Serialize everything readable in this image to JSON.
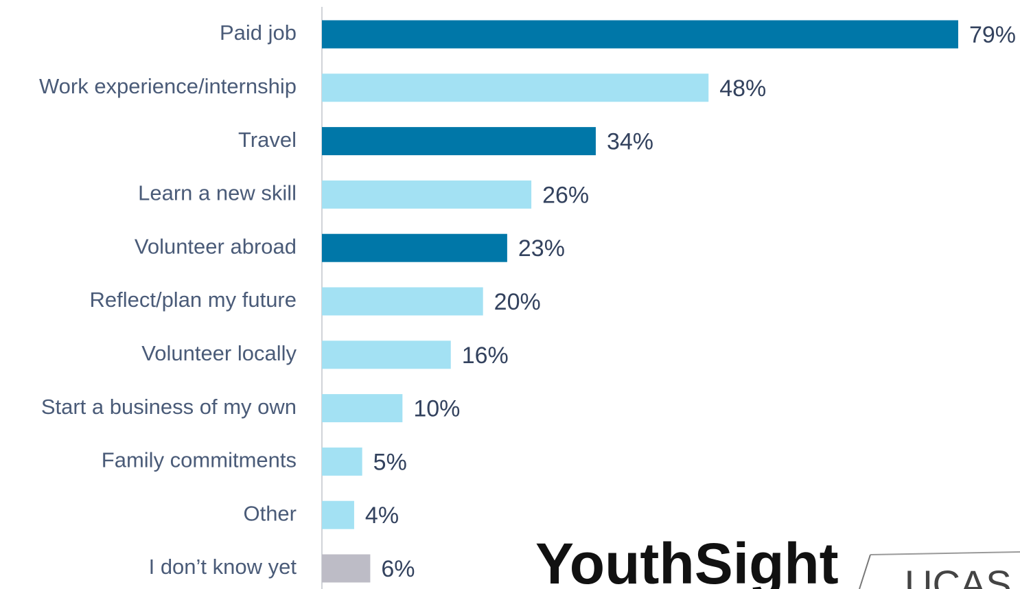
{
  "chart_data": {
    "type": "bar",
    "orientation": "horizontal",
    "categories": [
      "Paid job",
      "Work experience/internship",
      "Travel",
      "Learn a new skill",
      "Volunteer abroad",
      "Reflect/plan my future",
      "Volunteer locally",
      "Start a business of my own",
      "Family commitments",
      "Other",
      "I don’t know yet"
    ],
    "values": [
      79,
      48,
      34,
      26,
      23,
      20,
      16,
      10,
      5,
      4,
      6
    ],
    "value_labels": [
      "79%",
      "48%",
      "34%",
      "26%",
      "23%",
      "20%",
      "16%",
      "10%",
      "5%",
      "4%",
      "6%"
    ],
    "colors": [
      "#0077a8",
      "#a3e1f3",
      "#0077a8",
      "#a3e1f3",
      "#0077a8",
      "#a3e1f3",
      "#a3e1f3",
      "#a3e1f3",
      "#a3e1f3",
      "#a3e1f3",
      "#bdbcc6"
    ],
    "xlim": [
      0,
      86.5
    ],
    "grid": false
  },
  "logos": [
    "YouthSight",
    "UCAS"
  ]
}
